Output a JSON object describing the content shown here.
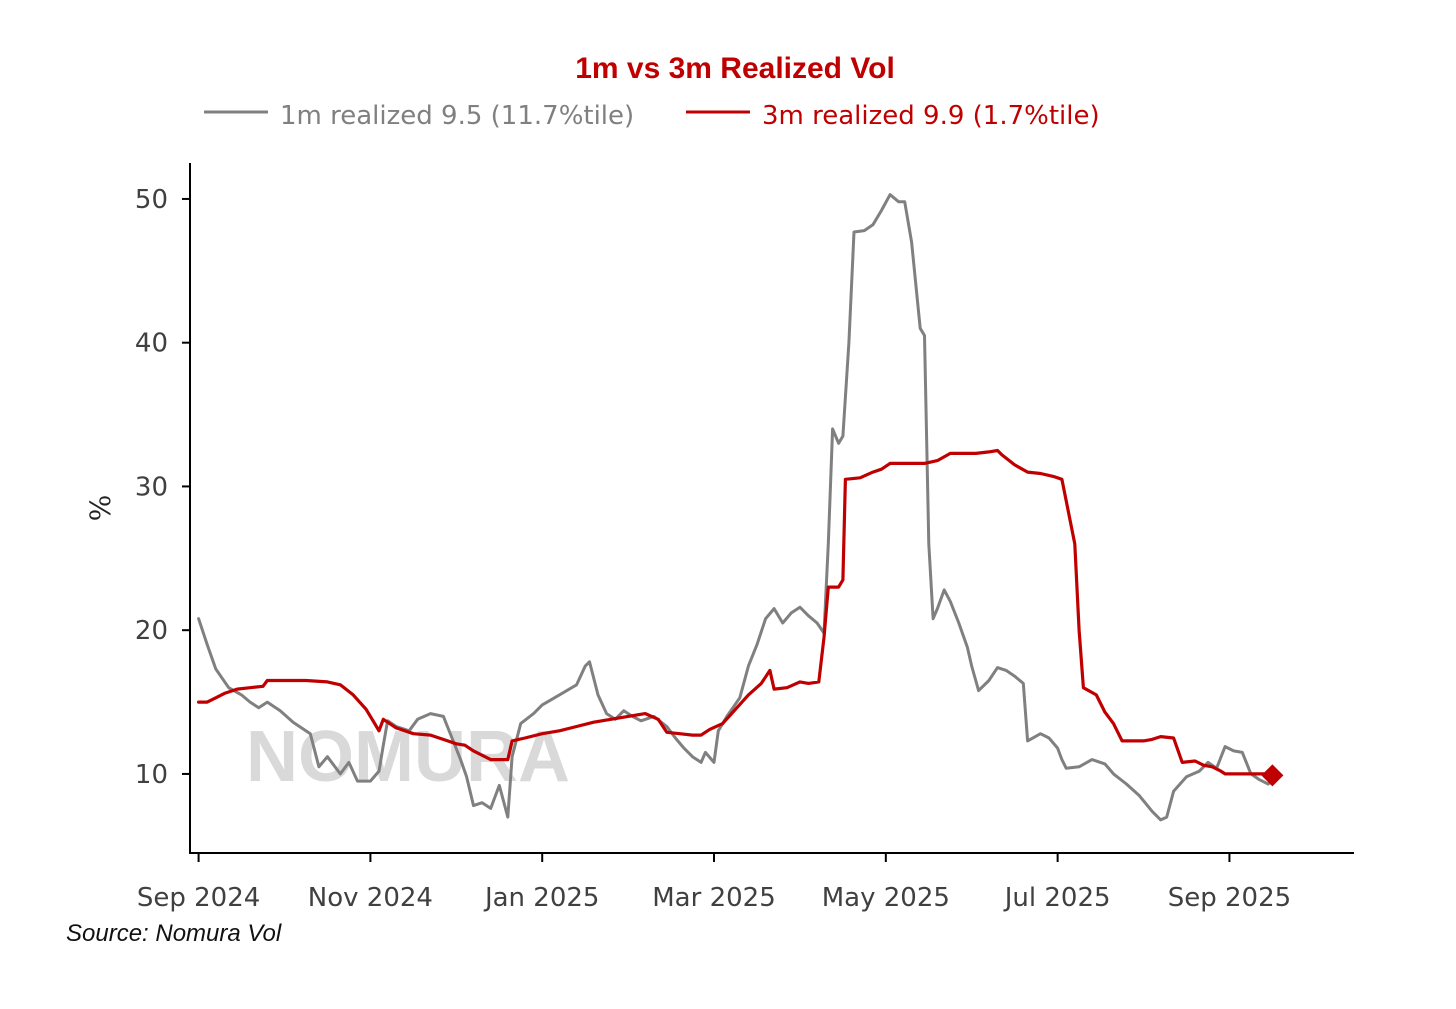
{
  "source_note": "Source: Nomura Vol",
  "watermark": "NOMURA",
  "colors": {
    "series_1m": "#808080",
    "series_3m": "#c00000",
    "title": "#c00000",
    "axis": "#000000"
  },
  "chart_data": {
    "type": "line",
    "title": "1m vs 3m Realized Vol",
    "xlabel": "",
    "ylabel": "%",
    "x_axis_unit": "months since Sep 1 2024",
    "xlim": [
      -0.1,
      13.45
    ],
    "ylim": [
      4.5,
      52.5
    ],
    "y_ticks": [
      10,
      20,
      30,
      40,
      50
    ],
    "x_ticks": [
      {
        "x": 0,
        "label": "Sep 2024"
      },
      {
        "x": 2,
        "label": "Nov 2024"
      },
      {
        "x": 4,
        "label": "Jan 2025"
      },
      {
        "x": 6,
        "label": "Mar 2025"
      },
      {
        "x": 8,
        "label": "May 2025"
      },
      {
        "x": 10,
        "label": "Jul 2025"
      },
      {
        "x": 12,
        "label": "Sep 2025"
      }
    ],
    "legend_position": "top-center",
    "series": [
      {
        "name": "1m realized 9.5 (11.7%tile)",
        "color": "#808080",
        "points": [
          [
            0.0,
            20.8
          ],
          [
            0.1,
            19.0
          ],
          [
            0.2,
            17.3
          ],
          [
            0.35,
            16.0
          ],
          [
            0.5,
            15.5
          ],
          [
            0.6,
            15.0
          ],
          [
            0.7,
            14.6
          ],
          [
            0.8,
            15.0
          ],
          [
            0.95,
            14.4
          ],
          [
            1.1,
            13.6
          ],
          [
            1.3,
            12.8
          ],
          [
            1.4,
            10.5
          ],
          [
            1.5,
            11.2
          ],
          [
            1.65,
            10.0
          ],
          [
            1.75,
            10.8
          ],
          [
            1.85,
            9.5
          ],
          [
            2.0,
            9.5
          ],
          [
            2.1,
            10.2
          ],
          [
            2.15,
            12.0
          ],
          [
            2.2,
            13.7
          ],
          [
            2.3,
            13.3
          ],
          [
            2.45,
            13.0
          ],
          [
            2.55,
            13.8
          ],
          [
            2.7,
            14.2
          ],
          [
            2.85,
            14.0
          ],
          [
            2.95,
            12.5
          ],
          [
            3.05,
            11.0
          ],
          [
            3.12,
            9.8
          ],
          [
            3.2,
            7.8
          ],
          [
            3.3,
            8.0
          ],
          [
            3.4,
            7.6
          ],
          [
            3.5,
            9.2
          ],
          [
            3.6,
            7.0
          ],
          [
            3.65,
            11.2
          ],
          [
            3.75,
            13.5
          ],
          [
            3.9,
            14.2
          ],
          [
            4.0,
            14.8
          ],
          [
            4.2,
            15.5
          ],
          [
            4.4,
            16.2
          ],
          [
            4.5,
            17.5
          ],
          [
            4.55,
            17.8
          ],
          [
            4.65,
            15.5
          ],
          [
            4.75,
            14.2
          ],
          [
            4.85,
            13.8
          ],
          [
            4.95,
            14.4
          ],
          [
            5.05,
            14.0
          ],
          [
            5.15,
            13.7
          ],
          [
            5.3,
            14.0
          ],
          [
            5.45,
            13.3
          ],
          [
            5.55,
            12.5
          ],
          [
            5.65,
            11.8
          ],
          [
            5.75,
            11.2
          ],
          [
            5.85,
            10.8
          ],
          [
            5.9,
            11.5
          ],
          [
            6.0,
            10.8
          ],
          [
            6.05,
            13.0
          ],
          [
            6.15,
            14.0
          ],
          [
            6.3,
            15.3
          ],
          [
            6.4,
            17.5
          ],
          [
            6.5,
            19.0
          ],
          [
            6.6,
            20.8
          ],
          [
            6.7,
            21.5
          ],
          [
            6.8,
            20.5
          ],
          [
            6.9,
            21.2
          ],
          [
            7.0,
            21.6
          ],
          [
            7.1,
            21.0
          ],
          [
            7.2,
            20.5
          ],
          [
            7.28,
            19.8
          ],
          [
            7.33,
            26.0
          ],
          [
            7.38,
            34.0
          ],
          [
            7.45,
            33.0
          ],
          [
            7.5,
            33.5
          ],
          [
            7.57,
            40.0
          ],
          [
            7.63,
            47.7
          ],
          [
            7.75,
            47.8
          ],
          [
            7.85,
            48.2
          ],
          [
            7.95,
            49.2
          ],
          [
            8.05,
            50.3
          ],
          [
            8.15,
            49.8
          ],
          [
            8.22,
            49.8
          ],
          [
            8.3,
            47.0
          ],
          [
            8.4,
            41.0
          ],
          [
            8.45,
            40.5
          ],
          [
            8.5,
            26.0
          ],
          [
            8.55,
            20.8
          ],
          [
            8.6,
            21.5
          ],
          [
            8.68,
            22.8
          ],
          [
            8.75,
            22.0
          ],
          [
            8.85,
            20.5
          ],
          [
            8.95,
            18.8
          ],
          [
            9.0,
            17.5
          ],
          [
            9.08,
            15.8
          ],
          [
            9.2,
            16.5
          ],
          [
            9.3,
            17.4
          ],
          [
            9.4,
            17.2
          ],
          [
            9.5,
            16.8
          ],
          [
            9.6,
            16.3
          ],
          [
            9.65,
            12.3
          ],
          [
            9.8,
            12.8
          ],
          [
            9.9,
            12.5
          ],
          [
            10.0,
            11.8
          ],
          [
            10.05,
            11.0
          ],
          [
            10.1,
            10.4
          ],
          [
            10.25,
            10.5
          ],
          [
            10.4,
            11.0
          ],
          [
            10.55,
            10.7
          ],
          [
            10.65,
            10.0
          ],
          [
            10.8,
            9.3
          ],
          [
            10.95,
            8.5
          ],
          [
            11.1,
            7.4
          ],
          [
            11.2,
            6.8
          ],
          [
            11.27,
            7.0
          ],
          [
            11.35,
            8.8
          ],
          [
            11.5,
            9.8
          ],
          [
            11.65,
            10.2
          ],
          [
            11.75,
            10.8
          ],
          [
            11.85,
            10.4
          ],
          [
            11.95,
            11.9
          ],
          [
            12.05,
            11.6
          ],
          [
            12.15,
            11.5
          ],
          [
            12.25,
            10.0
          ],
          [
            12.35,
            9.6
          ],
          [
            12.45,
            9.3
          ],
          [
            12.5,
            9.5
          ]
        ]
      },
      {
        "name": "3m realized 9.9 (1.7%tile)",
        "color": "#c00000",
        "points": [
          [
            0.0,
            15.0
          ],
          [
            0.1,
            15.0
          ],
          [
            0.2,
            15.3
          ],
          [
            0.3,
            15.6
          ],
          [
            0.45,
            15.9
          ],
          [
            0.6,
            16.0
          ],
          [
            0.75,
            16.1
          ],
          [
            0.8,
            16.5
          ],
          [
            1.0,
            16.5
          ],
          [
            1.25,
            16.5
          ],
          [
            1.5,
            16.4
          ],
          [
            1.65,
            16.2
          ],
          [
            1.8,
            15.5
          ],
          [
            1.95,
            14.5
          ],
          [
            2.05,
            13.5
          ],
          [
            2.1,
            13.0
          ],
          [
            2.15,
            13.8
          ],
          [
            2.3,
            13.2
          ],
          [
            2.5,
            12.8
          ],
          [
            2.7,
            12.7
          ],
          [
            2.9,
            12.3
          ],
          [
            3.0,
            12.1
          ],
          [
            3.1,
            12.0
          ],
          [
            3.2,
            11.6
          ],
          [
            3.4,
            11.0
          ],
          [
            3.6,
            11.0
          ],
          [
            3.65,
            12.3
          ],
          [
            3.8,
            12.5
          ],
          [
            4.0,
            12.8
          ],
          [
            4.2,
            13.0
          ],
          [
            4.4,
            13.3
          ],
          [
            4.6,
            13.6
          ],
          [
            4.8,
            13.8
          ],
          [
            5.0,
            14.0
          ],
          [
            5.2,
            14.2
          ],
          [
            5.35,
            13.8
          ],
          [
            5.45,
            12.9
          ],
          [
            5.6,
            12.8
          ],
          [
            5.75,
            12.7
          ],
          [
            5.85,
            12.7
          ],
          [
            5.95,
            13.1
          ],
          [
            6.1,
            13.5
          ],
          [
            6.25,
            14.5
          ],
          [
            6.4,
            15.5
          ],
          [
            6.55,
            16.3
          ],
          [
            6.65,
            17.2
          ],
          [
            6.7,
            15.9
          ],
          [
            6.85,
            16.0
          ],
          [
            7.0,
            16.4
          ],
          [
            7.1,
            16.3
          ],
          [
            7.22,
            16.4
          ],
          [
            7.28,
            19.5
          ],
          [
            7.33,
            23.0
          ],
          [
            7.45,
            23.0
          ],
          [
            7.5,
            23.5
          ],
          [
            7.53,
            30.5
          ],
          [
            7.7,
            30.6
          ],
          [
            7.85,
            31.0
          ],
          [
            7.95,
            31.2
          ],
          [
            8.05,
            31.6
          ],
          [
            8.2,
            31.6
          ],
          [
            8.3,
            31.6
          ],
          [
            8.45,
            31.6
          ],
          [
            8.6,
            31.8
          ],
          [
            8.75,
            32.3
          ],
          [
            8.9,
            32.3
          ],
          [
            9.05,
            32.3
          ],
          [
            9.2,
            32.4
          ],
          [
            9.3,
            32.5
          ],
          [
            9.35,
            32.2
          ],
          [
            9.5,
            31.5
          ],
          [
            9.65,
            31.0
          ],
          [
            9.8,
            30.9
          ],
          [
            9.95,
            30.7
          ],
          [
            10.05,
            30.5
          ],
          [
            10.1,
            29.0
          ],
          [
            10.2,
            26.0
          ],
          [
            10.25,
            20.0
          ],
          [
            10.3,
            16.0
          ],
          [
            10.45,
            15.5
          ],
          [
            10.55,
            14.3
          ],
          [
            10.65,
            13.5
          ],
          [
            10.75,
            12.3
          ],
          [
            11.0,
            12.3
          ],
          [
            11.1,
            12.4
          ],
          [
            11.2,
            12.6
          ],
          [
            11.35,
            12.5
          ],
          [
            11.45,
            10.8
          ],
          [
            11.6,
            10.9
          ],
          [
            11.7,
            10.6
          ],
          [
            11.8,
            10.5
          ],
          [
            11.9,
            10.2
          ],
          [
            11.95,
            10.0
          ],
          [
            12.1,
            10.0
          ],
          [
            12.2,
            10.0
          ],
          [
            12.3,
            10.0
          ],
          [
            12.45,
            10.0
          ],
          [
            12.5,
            9.9
          ]
        ]
      }
    ],
    "end_marker": {
      "series": "3m realized 9.9 (1.7%tile)",
      "x": 12.5,
      "y": 9.9
    }
  }
}
